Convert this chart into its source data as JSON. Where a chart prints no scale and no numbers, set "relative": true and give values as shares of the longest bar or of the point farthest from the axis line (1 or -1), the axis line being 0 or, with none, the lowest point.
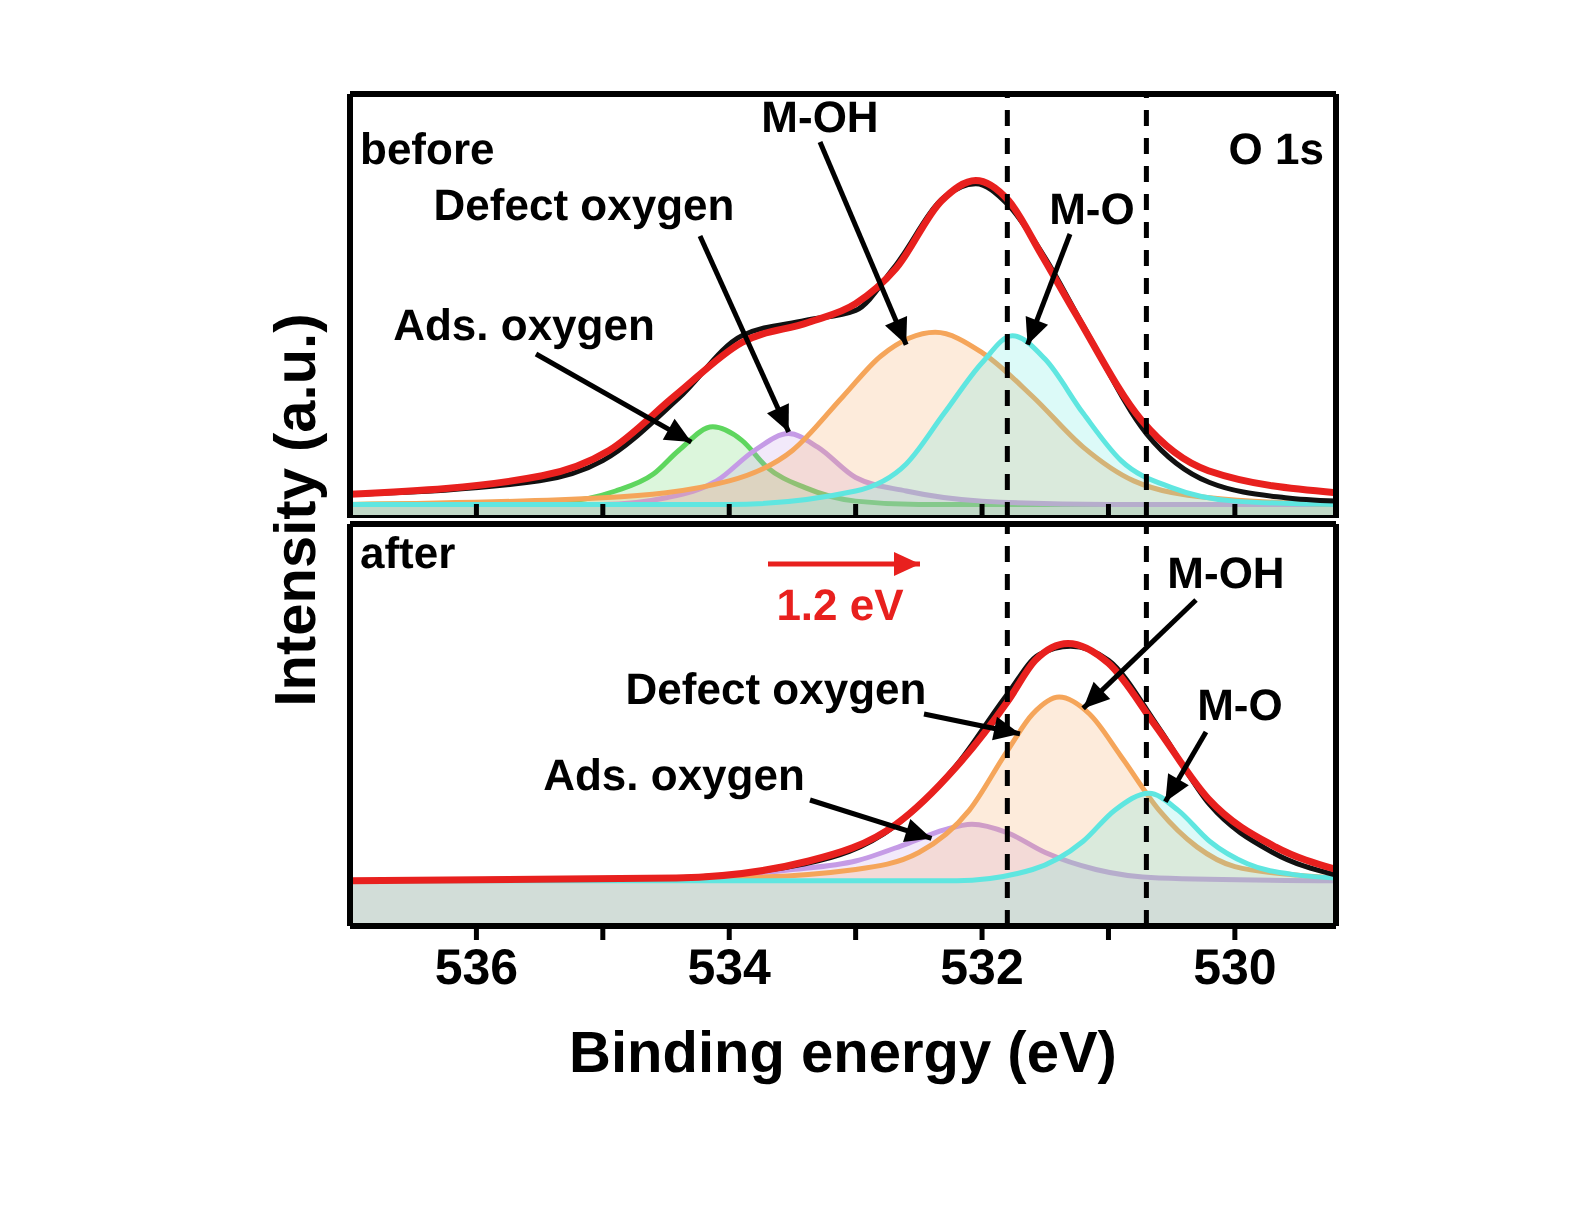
{
  "chart_data": [
    {
      "type": "line",
      "relative": true,
      "ylabel": "Intensity (a.u.)",
      "xlim": [
        537,
        529.2
      ],
      "xticks": [
        536,
        {
          "value": 535,
          "label": null
        },
        534,
        {
          "value": 533,
          "label": null
        },
        532,
        {
          "value": 531,
          "label": null
        },
        530
      ],
      "tick_labels": false,
      "annotations": [
        "before",
        "O 1s",
        {
          "text": "Ads. oxygen",
          "x": 534.3,
          "y": 0.22
        },
        {
          "text": "Defect oxygen",
          "x": 533.53,
          "y": 0.25
        },
        {
          "text": "M-OH",
          "x": 532.6,
          "y": 0.51
        },
        {
          "text": "M-O",
          "x": 531.64,
          "y": 0.51
        }
      ],
      "ref_lines": [
        {
          "axis": "x",
          "value": 531.8,
          "color": "#000000",
          "line_style": "dashed"
        },
        {
          "axis": "x",
          "value": 530.7,
          "color": "#000000",
          "line_style": "dashed"
        }
      ],
      "series": [
        {
          "type": "area",
          "color": "#5ed65e",
          "x": [
            537,
            535.3,
            534.9,
            534.6,
            534.4,
            534.13,
            533.9,
            533.7,
            533.4,
            533,
            532.5,
            529.2
          ],
          "values": [
            0.04,
            0.05,
            0.08,
            0.13,
            0.2,
            0.27,
            0.23,
            0.15,
            0.09,
            0.05,
            0.04,
            0.04
          ]
        },
        {
          "type": "area",
          "color": "#c59be6",
          "x": [
            537,
            535,
            534.5,
            534.1,
            533.8,
            533.53,
            533.3,
            533,
            532.6,
            532,
            531,
            529.2
          ],
          "values": [
            0.04,
            0.04,
            0.06,
            0.11,
            0.2,
            0.25,
            0.21,
            0.12,
            0.08,
            0.05,
            0.04,
            0.04
          ]
        },
        {
          "type": "area",
          "color": "#f5a55a",
          "x": [
            537,
            535,
            534,
            533.5,
            533.1,
            532.8,
            532.37,
            532,
            531.6,
            531.2,
            530.8,
            530.2,
            529.2
          ],
          "values": [
            0.04,
            0.06,
            0.11,
            0.2,
            0.36,
            0.48,
            0.55,
            0.49,
            0.36,
            0.21,
            0.11,
            0.06,
            0.04
          ]
        },
        {
          "type": "area",
          "color": "#5fe6e0",
          "x": [
            537,
            534,
            533,
            532.6,
            532.3,
            532,
            531.76,
            531.5,
            531.2,
            530.9,
            530.5,
            530,
            529.2
          ],
          "values": [
            0.04,
            0.04,
            0.08,
            0.16,
            0.31,
            0.46,
            0.54,
            0.47,
            0.31,
            0.17,
            0.09,
            0.05,
            0.04
          ]
        },
        {
          "color": "#111111",
          "x": [
            537,
            535.5,
            535,
            534.4,
            533.9,
            533.4,
            533,
            532.7,
            532.3,
            532.05,
            531.8,
            531.5,
            531.2,
            530.7,
            530.2,
            529.6,
            529.2
          ],
          "values": [
            0.07,
            0.11,
            0.17,
            0.355,
            0.54,
            0.585,
            0.615,
            0.74,
            0.95,
            0.99,
            0.93,
            0.77,
            0.57,
            0.25,
            0.105,
            0.06,
            0.05
          ]
        },
        {
          "color": "#e8201e",
          "x": [
            537,
            535.48,
            534.95,
            534.42,
            533.9,
            533.37,
            533,
            532.68,
            532.32,
            532.05,
            531.79,
            531.53,
            531.26,
            530.74,
            530.21,
            529.2
          ],
          "values": [
            0.07,
            0.125,
            0.2,
            0.365,
            0.52,
            0.58,
            0.635,
            0.74,
            0.94,
            1,
            0.94,
            0.78,
            0.605,
            0.29,
            0.14,
            0.075
          ]
        }
      ]
    },
    {
      "type": "line",
      "relative": true,
      "xlabel": "Binding energy (eV)",
      "xlim": [
        537,
        529.2
      ],
      "xticks": [
        536,
        {
          "value": 535,
          "label": null
        },
        534,
        {
          "value": 533,
          "label": null
        },
        532,
        {
          "value": 531,
          "label": null
        },
        530
      ],
      "tick_labels": "x",
      "annotations": [
        "after",
        "1.2 eV",
        {
          "text": "M-OH",
          "x": 531.2,
          "y": 0.77
        },
        {
          "text": "Defect oxygen",
          "x": 531.7,
          "y": 0.68
        },
        {
          "text": "M-O",
          "x": 530.55,
          "y": 0.44
        },
        {
          "text": "Ads. oxygen",
          "x": 532.4,
          "y": 0.31
        }
      ],
      "ref_lines": [
        {
          "axis": "x",
          "value": 531.8,
          "color": "#000000",
          "line_style": "dashed"
        },
        {
          "axis": "x",
          "value": 530.7,
          "color": "#000000",
          "line_style": "dashed"
        }
      ],
      "series": [
        {
          "type": "area",
          "color": "#c59be6",
          "x": [
            537,
            534.5,
            533.5,
            533,
            532.6,
            532.3,
            532.08,
            531.8,
            531.5,
            531.1,
            530.6,
            529.2
          ],
          "values": [
            0.16,
            0.17,
            0.2,
            0.23,
            0.29,
            0.34,
            0.36,
            0.33,
            0.26,
            0.2,
            0.17,
            0.16
          ]
        },
        {
          "type": "area",
          "color": "#f5a55a",
          "x": [
            537,
            534,
            533,
            532.5,
            532.1,
            531.8,
            531.6,
            531.39,
            531.15,
            530.9,
            530.6,
            530.3,
            530,
            529.5,
            529.2
          ],
          "values": [
            0.16,
            0.17,
            0.2,
            0.26,
            0.41,
            0.62,
            0.75,
            0.81,
            0.75,
            0.6,
            0.41,
            0.28,
            0.21,
            0.18,
            0.17
          ]
        },
        {
          "type": "area",
          "color": "#5fe6e0",
          "x": [
            537,
            532.2,
            531.6,
            531.2,
            530.95,
            530.68,
            530.45,
            530.2,
            529.9,
            529.5,
            529.2
          ],
          "values": [
            0.16,
            0.16,
            0.2,
            0.3,
            0.41,
            0.47,
            0.41,
            0.3,
            0.22,
            0.18,
            0.17
          ]
        },
        {
          "color": "#111111",
          "x": [
            537,
            534.5,
            533.4,
            532.7,
            532.2,
            531.8,
            531.55,
            531.3,
            531,
            530.6,
            530.2,
            529.7,
            529.2
          ],
          "values": [
            0.16,
            0.17,
            0.22,
            0.35,
            0.57,
            0.82,
            0.96,
            0.99,
            0.94,
            0.7,
            0.43,
            0.26,
            0.18
          ]
        },
        {
          "color": "#e8201e",
          "x": [
            537,
            534.42,
            533.37,
            532.68,
            532.21,
            531.79,
            531.58,
            531.32,
            531,
            530.63,
            530.21,
            529.68,
            529.2
          ],
          "values": [
            0.16,
            0.17,
            0.23,
            0.36,
            0.56,
            0.8,
            0.94,
            1,
            0.93,
            0.71,
            0.45,
            0.28,
            0.2
          ]
        }
      ]
    }
  ]
}
